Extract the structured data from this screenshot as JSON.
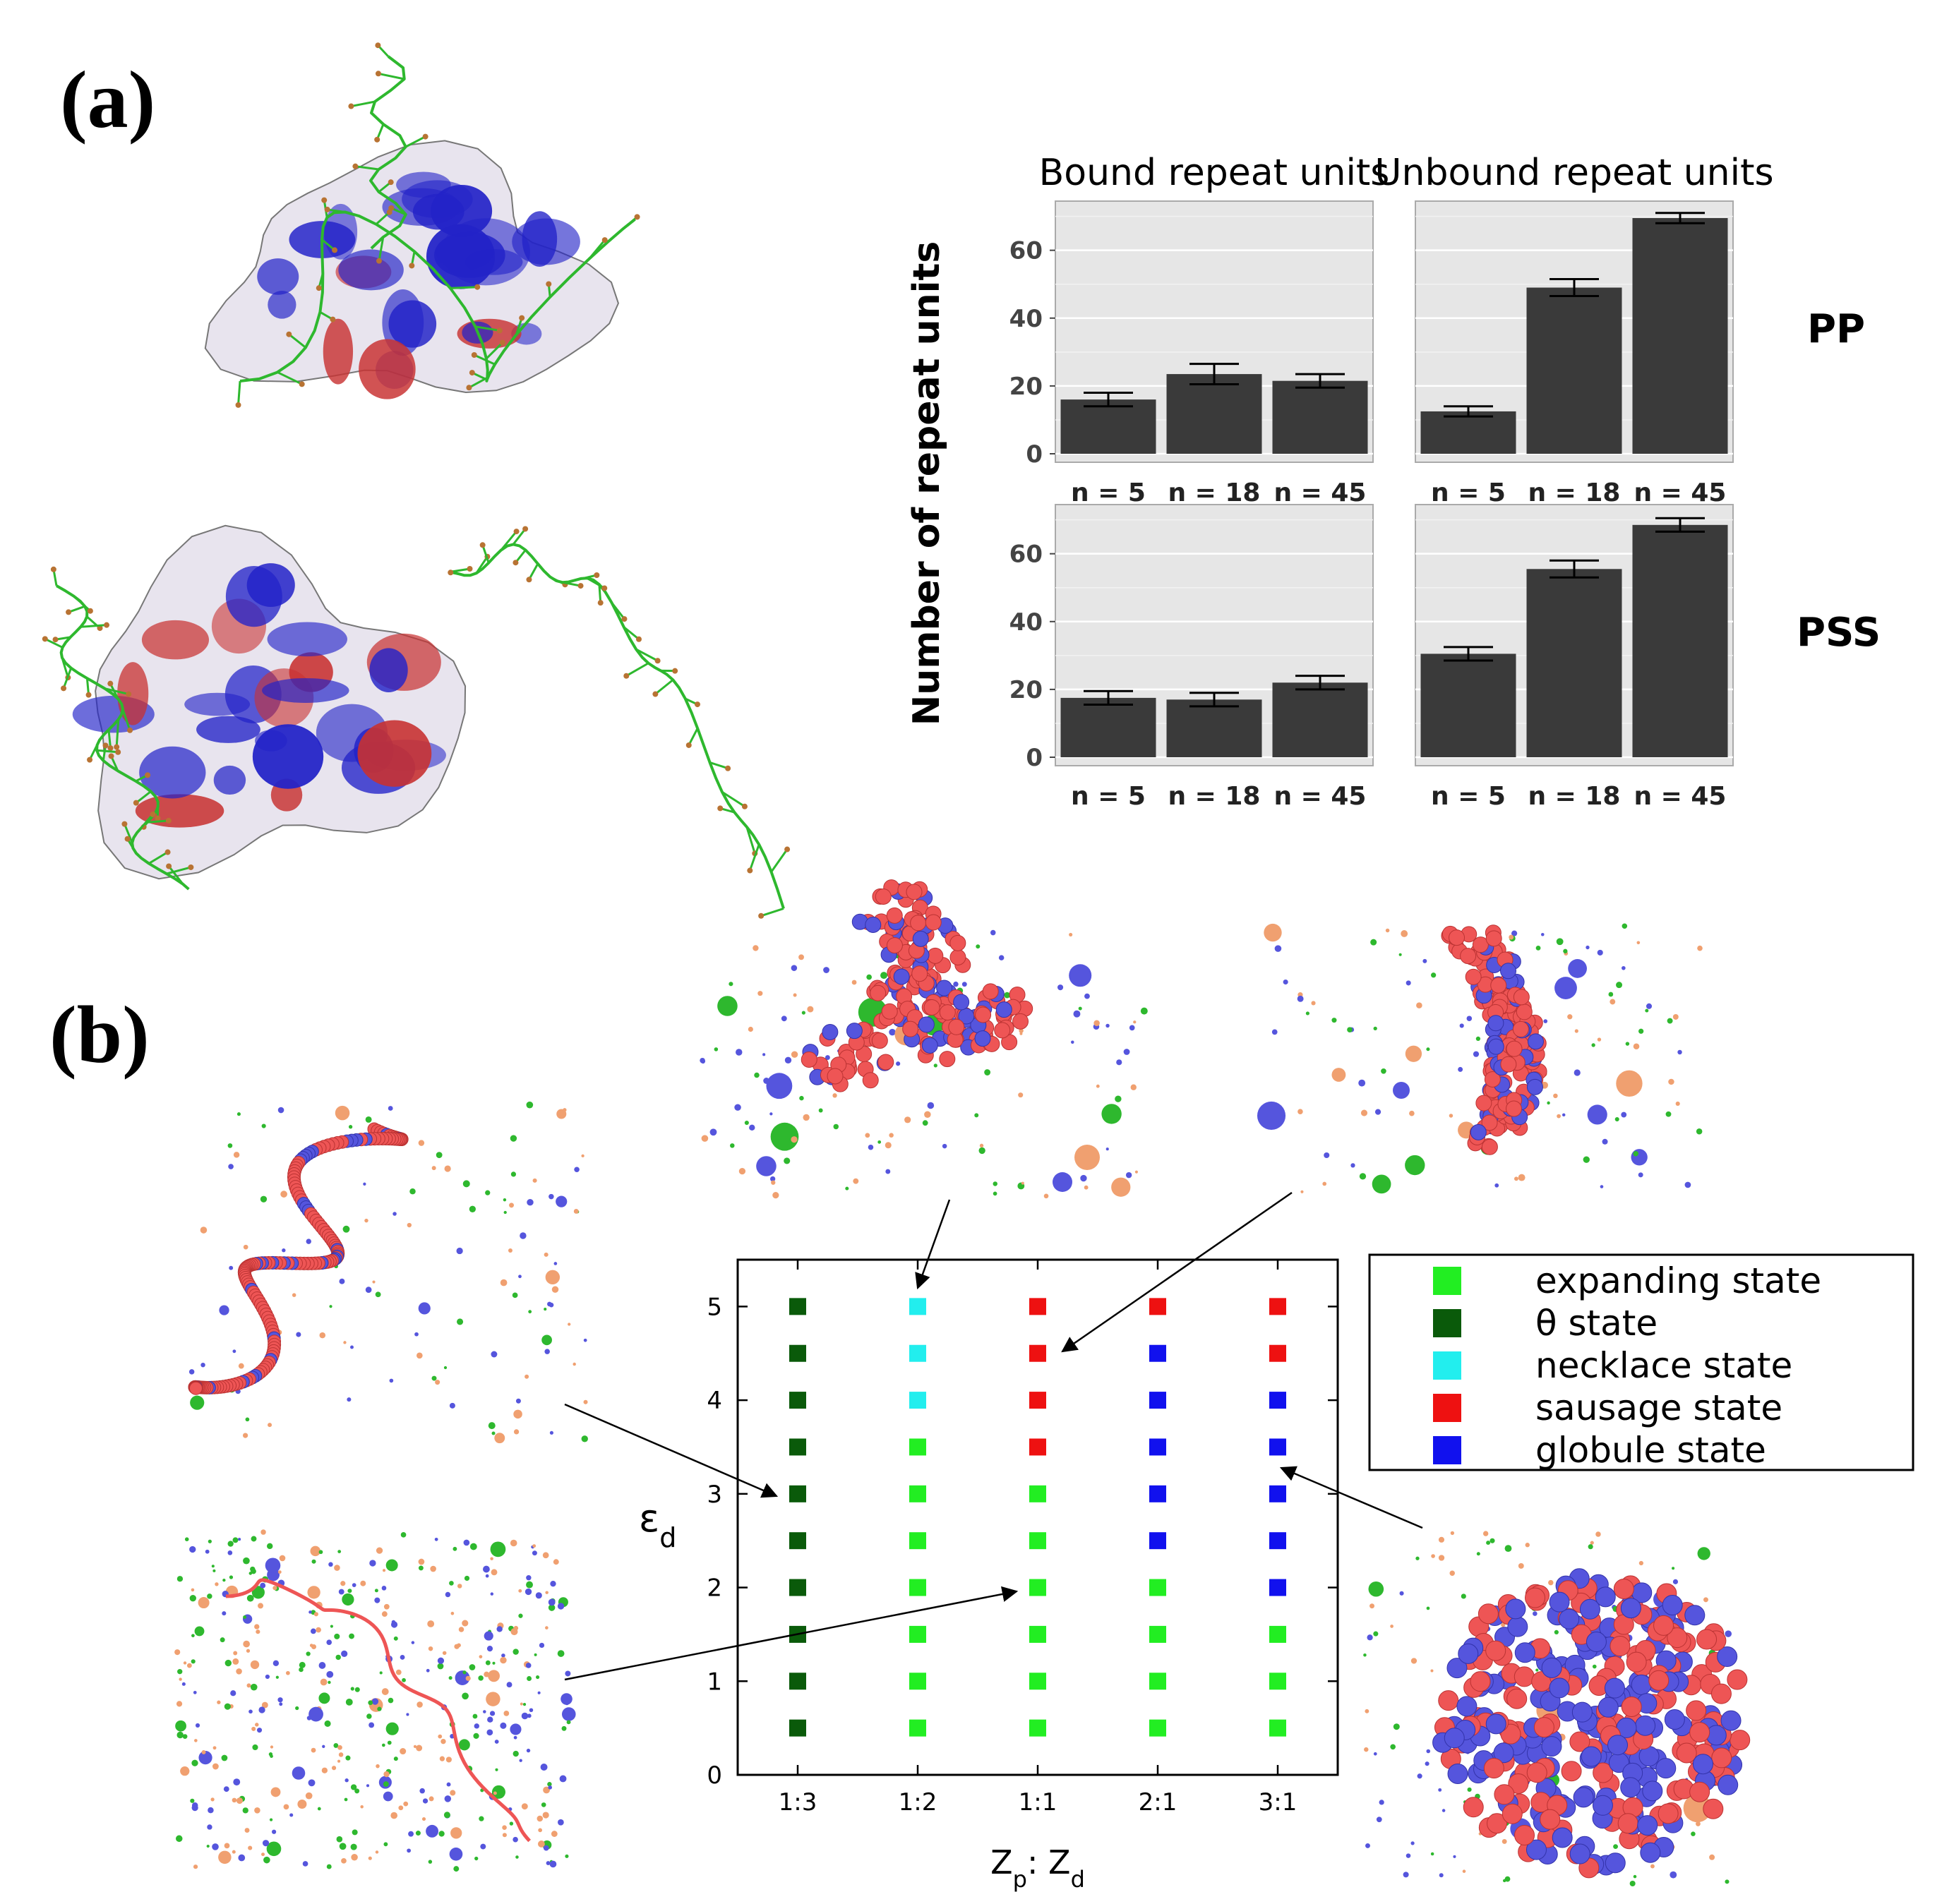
{
  "panel_labels": {
    "a": "(a)",
    "b": "(b)"
  },
  "colors": {
    "bar": "#3a3a3a",
    "facet_bg": "#e6e6e6",
    "protein_blue": "#2323c8",
    "protein_red": "#c83232",
    "polymer_green": "#2eb82e",
    "bead_red": "#ee5555",
    "bead_blue": "#5555dd",
    "counterion_orange": "#f0a070"
  },
  "icons": {
    "protein_1": "protein-surface-with-polymer-icon",
    "protein_2": "protein-surface-with-polymer-chain-icon",
    "sim_expanding": "expanding-chain-snapshot-icon",
    "sim_theta": "theta-chain-snapshot-icon",
    "sim_necklace": "necklace-chain-snapshot-icon",
    "sim_sausage": "sausage-chain-snapshot-icon",
    "sim_globule": "globule-snapshot-icon"
  },
  "chart_data": [
    {
      "type": "bar",
      "facet_columns": [
        "Bound repeat units",
        "Unbound repeat units"
      ],
      "facet_rows": [
        "PP",
        "PSS"
      ],
      "categories": [
        "n = 5",
        "n = 18",
        "n = 45"
      ],
      "ylabel": "Number of repeat units",
      "ylim": [
        0,
        72
      ],
      "yticks": [
        0,
        20,
        40,
        60
      ],
      "grid": true,
      "panels": [
        {
          "row": "PP",
          "column": "Bound repeat units",
          "values": [
            16,
            23.5,
            21.5
          ],
          "errors": [
            2,
            3,
            2
          ]
        },
        {
          "row": "PP",
          "column": "Unbound repeat units",
          "values": [
            12.5,
            49,
            69.5
          ],
          "errors": [
            1.5,
            2.5,
            1.5
          ]
        },
        {
          "row": "PSS",
          "column": "Bound repeat units",
          "values": [
            17.5,
            17,
            22
          ],
          "errors": [
            2,
            2,
            2
          ]
        },
        {
          "row": "PSS",
          "column": "Unbound repeat units",
          "values": [
            30.5,
            55.5,
            68.5
          ],
          "errors": [
            2,
            2.5,
            2
          ]
        }
      ]
    },
    {
      "type": "scatter",
      "xlabel": "Z",
      "xlabel_sub_p": "p",
      "xlabel_sep": ": Z",
      "xlabel_sub_d": "d",
      "ylabel": "ε",
      "ylabel_sub": "d",
      "categories": [
        "1:3",
        "1:2",
        "1:1",
        "2:1",
        "3:1"
      ],
      "ylim": [
        0,
        5.5
      ],
      "yticks": [
        "0",
        "1",
        "2",
        "3",
        "4",
        "5"
      ],
      "y": [
        0.5,
        1,
        1.5,
        2,
        2.5,
        3,
        3.5,
        4,
        4.5,
        5
      ],
      "states": {
        "1:3": [
          "theta",
          "theta",
          "theta",
          "theta",
          "theta",
          "theta",
          "theta",
          "theta",
          "theta",
          "theta"
        ],
        "1:2": [
          "expanding",
          "expanding",
          "expanding",
          "expanding",
          "expanding",
          "expanding",
          "expanding",
          "necklace",
          "necklace",
          "necklace"
        ],
        "1:1": [
          "expanding",
          "expanding",
          "expanding",
          "expanding",
          "expanding",
          "expanding",
          "sausage",
          "sausage",
          "sausage",
          "sausage"
        ],
        "2:1": [
          "expanding",
          "expanding",
          "expanding",
          "expanding",
          "globule",
          "globule",
          "globule",
          "globule",
          "globule",
          "sausage"
        ],
        "3:1": [
          "expanding",
          "expanding",
          "expanding",
          "globule",
          "globule",
          "globule",
          "globule",
          "globule",
          "sausage",
          "sausage"
        ]
      },
      "legend": [
        {
          "key": "expanding",
          "label": "expanding state",
          "color": "#22ee22"
        },
        {
          "key": "theta",
          "label": "θ state",
          "color": "#0a5a0a"
        },
        {
          "key": "necklace",
          "label": "necklace state",
          "color": "#22eeee"
        },
        {
          "key": "sausage",
          "label": "sausage state",
          "color": "#ee1111"
        },
        {
          "key": "globule",
          "label": "globule state",
          "color": "#1111ee"
        }
      ],
      "legend_position": "right"
    }
  ]
}
